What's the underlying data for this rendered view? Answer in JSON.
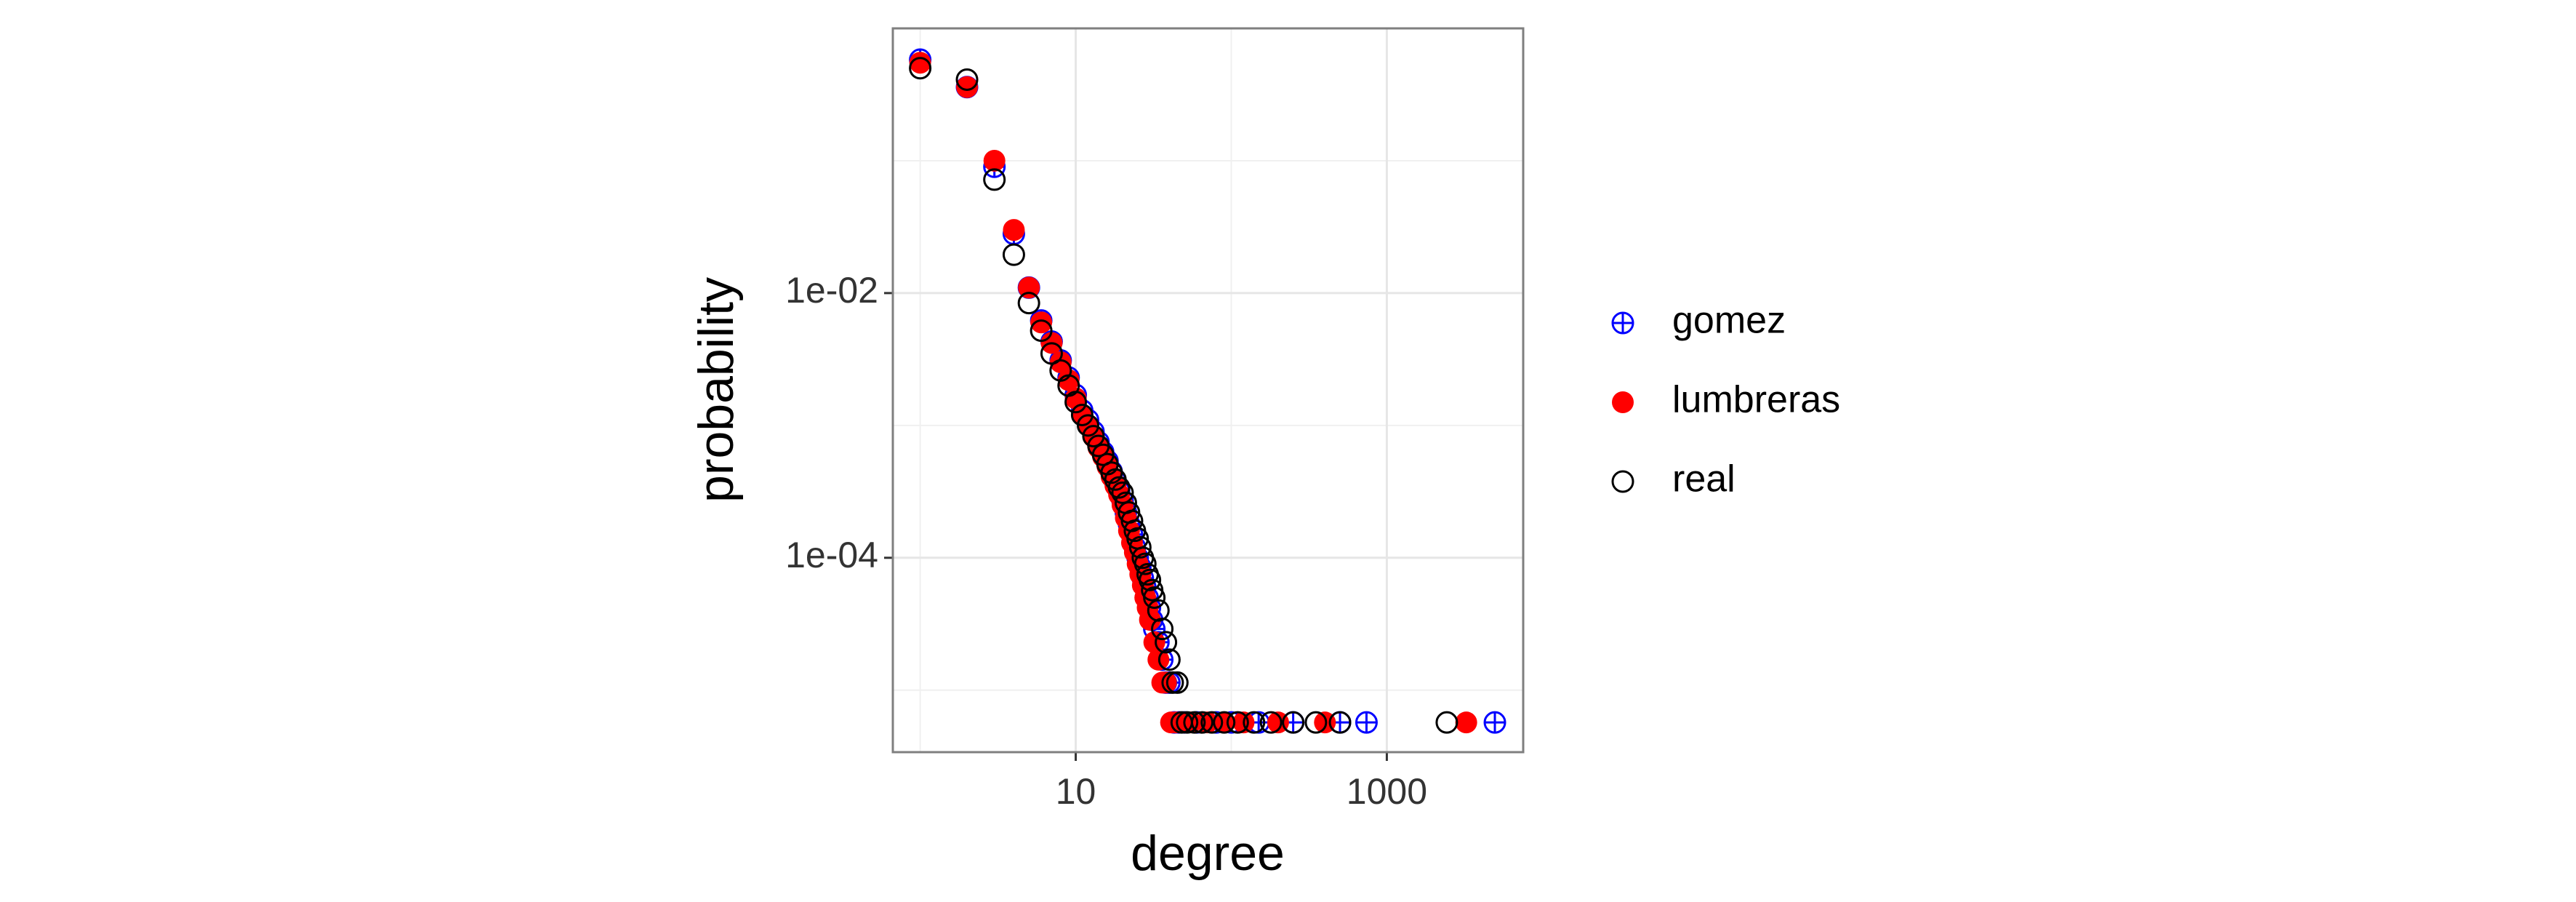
{
  "chart_data": {
    "type": "scatter",
    "x_label": "degree",
    "y_label": "probability",
    "xscale": "log",
    "yscale": "log",
    "grid": true,
    "xlim": [
      0.667,
      7530
    ],
    "ylim": [
      3.4e-06,
      1
    ],
    "xticks": [
      {
        "value": 10,
        "label": "10"
      },
      {
        "value": 1000,
        "label": "1000"
      }
    ],
    "yticks": [
      {
        "value": 0.01,
        "label": "1e-02"
      },
      {
        "value": 0.0001,
        "label": "1e-04"
      }
    ],
    "x_minor_ticks": [
      1,
      100
    ],
    "y_minor_ticks": [
      0.1,
      0.001,
      1e-05
    ],
    "legend": "right",
    "series": [
      {
        "name": "gomez",
        "color": "#0000ff",
        "marker": "circle-plus",
        "x": [
          1,
          2,
          3,
          4,
          5,
          6,
          7,
          8,
          9,
          10,
          11,
          12,
          13,
          14,
          15,
          16,
          17,
          18,
          19,
          20,
          21,
          22,
          23,
          24,
          25,
          26,
          27,
          28,
          29,
          30,
          31,
          32,
          34,
          36,
          38,
          40,
          43,
          46,
          50,
          60,
          80,
          100,
          150,
          250,
          500,
          740,
          4950
        ],
        "values": [
          0.58,
          0.36,
          0.09,
          0.028,
          0.011,
          0.0062,
          0.0043,
          0.0031,
          0.0023,
          0.0017,
          0.0013,
          0.0011,
          0.0009,
          0.00075,
          0.00063,
          0.00054,
          0.00045,
          0.00038,
          0.00032,
          0.00027,
          0.00022,
          0.00018,
          0.00015,
          0.00012,
          0.0001,
          8.5e-05,
          7e-05,
          6e-05,
          5e-05,
          4.2e-05,
          3.4e-05,
          2.9e-05,
          2.3e-05,
          1.7e-05,
          1.14e-05,
          1.14e-05,
          5.7e-06,
          5.7e-06,
          5.7e-06,
          5.7e-06,
          5.7e-06,
          5.7e-06,
          5.7e-06,
          5.7e-06,
          5.7e-06,
          5.7e-06,
          5.7e-06
        ]
      },
      {
        "name": "lumbreras",
        "color": "#ff0000",
        "marker": "filled",
        "x": [
          1,
          2,
          3,
          4,
          5,
          6,
          7,
          8,
          9,
          10,
          11,
          12,
          13,
          14,
          15,
          16,
          17,
          18,
          19,
          20,
          21,
          22,
          23,
          24,
          25,
          26,
          27,
          28,
          29,
          30,
          32,
          34,
          36,
          38,
          41,
          44,
          48,
          55,
          70,
          90,
          120,
          200,
          400,
          3240
        ],
        "values": [
          0.55,
          0.36,
          0.1,
          0.03,
          0.011,
          0.006,
          0.0042,
          0.003,
          0.0022,
          0.0016,
          0.0012,
          0.001,
          0.00082,
          0.00068,
          0.00058,
          0.00049,
          0.00041,
          0.00035,
          0.0003,
          0.00025,
          0.0002,
          0.00016,
          0.00013,
          0.00011,
          9e-05,
          7.5e-05,
          6.2e-05,
          5e-05,
          4.2e-05,
          3.4e-05,
          2.3e-05,
          1.7e-05,
          1.14e-05,
          1.14e-05,
          5.7e-06,
          5.7e-06,
          5.7e-06,
          5.7e-06,
          5.7e-06,
          5.7e-06,
          5.7e-06,
          5.7e-06,
          5.7e-06,
          5.7e-06
        ]
      },
      {
        "name": "real",
        "color": "#000000",
        "marker": "open",
        "x": [
          1,
          2,
          3,
          4,
          5,
          6,
          7,
          8,
          9,
          10,
          11,
          12,
          13,
          14,
          15,
          16,
          17,
          18,
          19,
          20,
          21,
          22,
          23,
          24,
          25,
          26,
          27,
          28,
          29,
          30,
          31,
          32,
          34,
          36,
          38,
          40,
          42,
          45,
          48,
          52,
          58,
          65,
          75,
          90,
          110,
          140,
          180,
          250,
          350,
          500,
          2430
        ],
        "values": [
          0.5,
          0.41,
          0.072,
          0.0195,
          0.0084,
          0.0052,
          0.0035,
          0.0026,
          0.002,
          0.0015,
          0.0012,
          0.001,
          0.00083,
          0.0007,
          0.0006,
          0.00051,
          0.00044,
          0.00039,
          0.00034,
          0.00031,
          0.00026,
          0.00022,
          0.00019,
          0.00016,
          0.00014,
          0.00012,
          0.0001,
          9e-05,
          7.5e-05,
          6.8e-05,
          5.7e-05,
          5e-05,
          4e-05,
          2.9e-05,
          2.3e-05,
          1.7e-05,
          1.14e-05,
          1.14e-05,
          5.7e-06,
          5.7e-06,
          5.7e-06,
          5.7e-06,
          5.7e-06,
          5.7e-06,
          5.7e-06,
          5.7e-06,
          5.7e-06,
          5.7e-06,
          5.7e-06,
          5.7e-06,
          5.7e-06
        ]
      }
    ]
  }
}
